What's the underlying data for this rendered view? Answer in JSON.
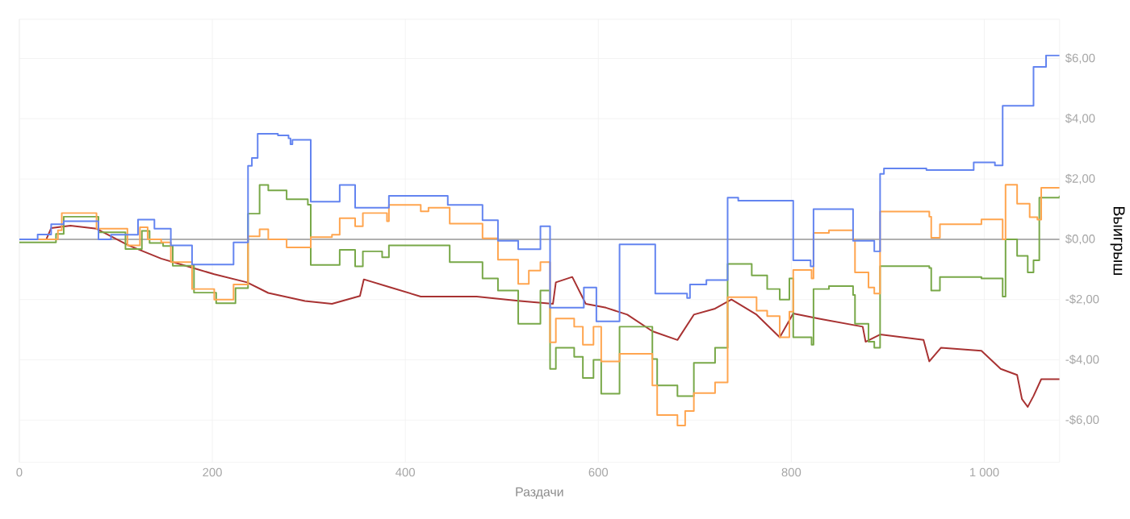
{
  "chart_data": {
    "type": "step",
    "xlabel": "Раздачи",
    "ylabel": "Выигрыш",
    "xlim": [
      0,
      1078
    ],
    "ylim": [
      -7.4,
      7.3
    ],
    "xticks": [
      0,
      200,
      400,
      600,
      800,
      {
        "value": 1000,
        "label": "1 000"
      }
    ],
    "yticks": [
      {
        "value": -6,
        "label": "-$6,00"
      },
      {
        "value": -4,
        "label": "-$4,00"
      },
      {
        "value": -2,
        "label": "-$2,00"
      },
      {
        "value": 0,
        "label": "$0,00"
      },
      {
        "value": 2,
        "label": "$2,00"
      },
      {
        "value": 4,
        "label": "$4,00"
      },
      {
        "value": 6,
        "label": "$6,00"
      }
    ],
    "grid": true,
    "ref_lines": [
      {
        "axis": "y",
        "value": 0,
        "color": "#b0b0b0"
      }
    ],
    "series": [
      {
        "color": "#a83232",
        "type": "line",
        "x": [
          0,
          28,
          33,
          53,
          80,
          113,
          147,
          180,
          202,
          236,
          258,
          296,
          324,
          353,
          357,
          385,
          416,
          474,
          519,
          553,
          556,
          573,
          587,
          608,
          630,
          656,
          682,
          699,
          721,
          738,
          764,
          788,
          802,
          830,
          874,
          877,
          892,
          937,
          943,
          955,
          997,
          1017,
          1034,
          1039,
          1045,
          1051,
          1059,
          1078
        ],
        "values": [
          0,
          0,
          0.37,
          0.45,
          0.35,
          -0.2,
          -0.64,
          -0.95,
          -1.16,
          -1.43,
          -1.78,
          -2.05,
          -2.14,
          -1.88,
          -1.33,
          -1.6,
          -1.9,
          -1.9,
          -2.05,
          -2.14,
          -1.43,
          -1.25,
          -2.14,
          -2.27,
          -2.5,
          -3.05,
          -3.34,
          -2.5,
          -2.3,
          -2.0,
          -2.5,
          -3.25,
          -2.46,
          -2.64,
          -2.9,
          -3.4,
          -3.16,
          -3.34,
          -4.05,
          -3.6,
          -3.7,
          -4.3,
          -4.5,
          -5.3,
          -5.56,
          -5.2,
          -4.64,
          -4.64
        ]
      },
      {
        "color": "#78a848",
        "x": [
          0,
          38,
          46,
          82,
          110,
          127,
          135,
          149,
          159,
          181,
          204,
          224,
          237,
          249,
          258,
          277,
          299,
          302,
          332,
          348,
          356,
          376,
          383,
          424,
          446,
          480,
          496,
          517,
          540,
          550,
          556,
          575,
          584,
          595,
          603,
          622,
          656,
          661,
          682,
          699,
          721,
          734,
          759,
          775,
          788,
          798,
          802,
          821,
          823,
          839,
          864,
          866,
          880,
          886,
          892,
          943,
          945,
          954,
          997,
          1019,
          1022,
          1034,
          1045,
          1051,
          1057,
          1078
        ],
        "values": [
          -0.1,
          0.18,
          0.75,
          0.23,
          -0.32,
          0.28,
          -0.12,
          -0.22,
          -0.88,
          -1.77,
          -2.12,
          -1.62,
          0.85,
          1.8,
          1.62,
          1.33,
          1.15,
          -0.85,
          -0.35,
          -0.9,
          -0.4,
          -0.6,
          -0.2,
          -0.2,
          -0.76,
          -1.3,
          -1.7,
          -2.8,
          -1.7,
          -4.3,
          -3.6,
          -3.9,
          -4.6,
          -4.0,
          -5.12,
          -2.9,
          -3.97,
          -4.85,
          -5.2,
          -4.1,
          -3.6,
          -0.82,
          -1.2,
          -1.65,
          -2.0,
          -1.3,
          -3.25,
          -3.5,
          -1.65,
          -1.55,
          -1.85,
          -2.8,
          -3.4,
          -3.6,
          -0.89,
          -0.95,
          -1.7,
          -1.25,
          -1.3,
          -1.9,
          0.0,
          -0.55,
          -1.1,
          -0.7,
          1.38,
          1.45
        ]
      },
      {
        "color": "#ffa54f",
        "x": [
          0,
          40,
          44,
          80,
          112,
          125,
          133,
          147,
          157,
          179,
          202,
          222,
          237,
          249,
          258,
          277,
          302,
          324,
          332,
          348,
          356,
          376,
          381,
          383,
          416,
          424,
          446,
          480,
          496,
          517,
          528,
          540,
          550,
          556,
          575,
          584,
          595,
          603,
          622,
          656,
          661,
          682,
          690,
          699,
          721,
          734,
          764,
          775,
          788,
          798,
          802,
          821,
          823,
          839,
          864,
          866,
          880,
          886,
          892,
          943,
          945,
          954,
          997,
          1019,
          1022,
          1034,
          1047,
          1055,
          1059,
          1078
        ],
        "values": [
          0,
          0.3,
          0.87,
          0.35,
          -0.2,
          0.4,
          0.0,
          -0.1,
          -0.76,
          -1.65,
          -2.0,
          -1.5,
          0.1,
          0.33,
          0.0,
          -0.27,
          0.07,
          0.15,
          0.7,
          0.43,
          0.87,
          0.87,
          0.6,
          1.14,
          0.93,
          1.05,
          0.52,
          0.03,
          -0.68,
          -1.48,
          -1.04,
          -0.76,
          -3.42,
          -2.63,
          -2.9,
          -3.5,
          -2.9,
          -4.05,
          -3.8,
          -4.85,
          -5.83,
          -6.18,
          -5.7,
          -5.1,
          -4.75,
          -1.92,
          -2.37,
          -2.55,
          -3.25,
          -2.4,
          -1.02,
          -1.3,
          0.21,
          0.3,
          0.0,
          -1.1,
          -1.6,
          -1.8,
          0.92,
          0.75,
          0.05,
          0.5,
          0.66,
          0.0,
          1.81,
          1.18,
          0.73,
          0.65,
          1.71,
          1.71
        ]
      },
      {
        "color": "#6384f0",
        "x": [
          0,
          19,
          33,
          46,
          82,
          95,
          123,
          140,
          157,
          179,
          222,
          237,
          241,
          247,
          268,
          279,
          281,
          283,
          302,
          332,
          348,
          383,
          444,
          480,
          496,
          517,
          540,
          550,
          585,
          598,
          622,
          659,
          692,
          695,
          712,
          734,
          745,
          802,
          820,
          823,
          864,
          886,
          892,
          896,
          940,
          989,
          1011,
          1019,
          1051,
          1064,
          1078
        ],
        "values": [
          0,
          0.16,
          0.5,
          0.6,
          0,
          0.15,
          0.65,
          0.35,
          -0.2,
          -0.84,
          -0.1,
          2.44,
          2.7,
          3.5,
          3.45,
          3.35,
          3.15,
          3.3,
          1.25,
          1.8,
          1.05,
          1.44,
          1.14,
          0.63,
          -0.05,
          -0.33,
          0.43,
          -2.27,
          -1.6,
          -2.72,
          -0.17,
          -1.8,
          -1.95,
          -1.5,
          -1.35,
          1.38,
          1.28,
          -0.7,
          -0.9,
          1.0,
          -0.05,
          -0.4,
          2.17,
          2.35,
          2.3,
          2.55,
          2.45,
          4.43,
          5.72,
          6.1,
          6.1
        ]
      }
    ]
  }
}
